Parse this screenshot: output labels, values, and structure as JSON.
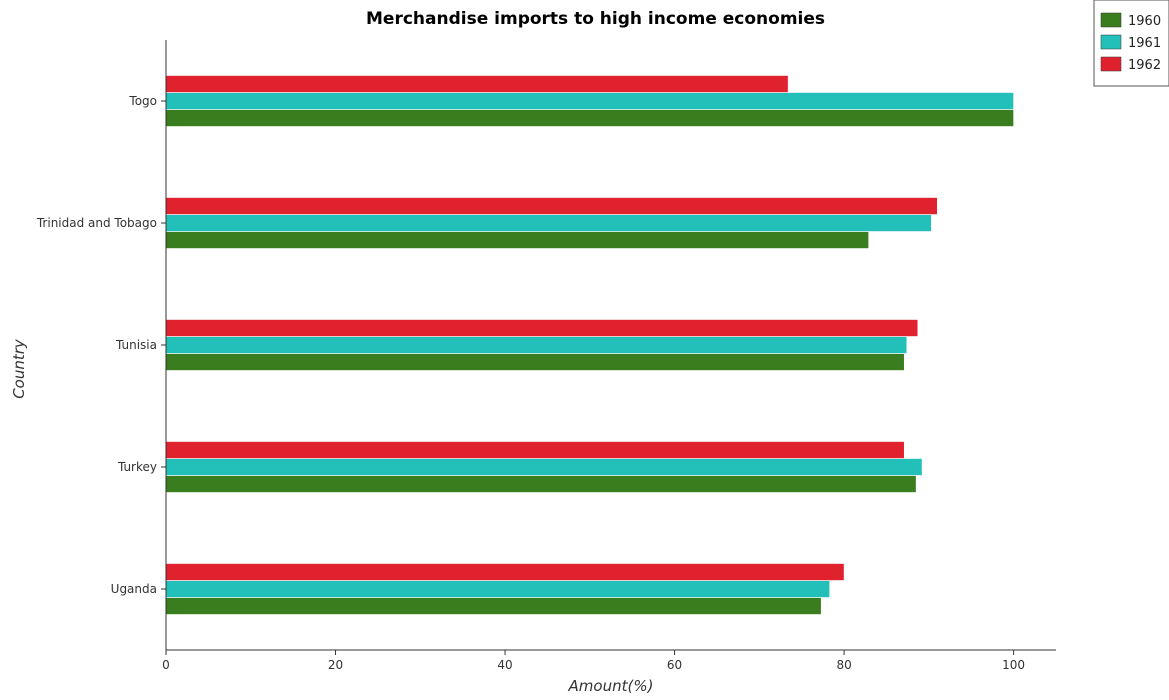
{
  "chart_data": {
    "type": "bar",
    "orientation": "horizontal",
    "title": "Merchandise imports to high income economies",
    "xlabel": "Amount(%)",
    "ylabel": "Country",
    "xlim": [
      0,
      105
    ],
    "xticks": [
      0,
      20,
      40,
      60,
      80,
      100
    ],
    "grid": false,
    "legend_position": "top-right",
    "categories": [
      "Togo",
      "Trinidad and Tobago",
      "Tunisia",
      "Turkey",
      "Uganda"
    ],
    "series": [
      {
        "name": "1960",
        "color": "#3a7d1e",
        "values": [
          100.0,
          82.9,
          87.1,
          88.5,
          77.3
        ]
      },
      {
        "name": "1961",
        "color": "#22c0b8",
        "values": [
          100.0,
          90.3,
          87.4,
          89.2,
          78.3
        ]
      },
      {
        "name": "1962",
        "color": "#e0222e",
        "values": [
          73.4,
          91.0,
          88.7,
          87.1,
          80.0
        ]
      }
    ]
  }
}
